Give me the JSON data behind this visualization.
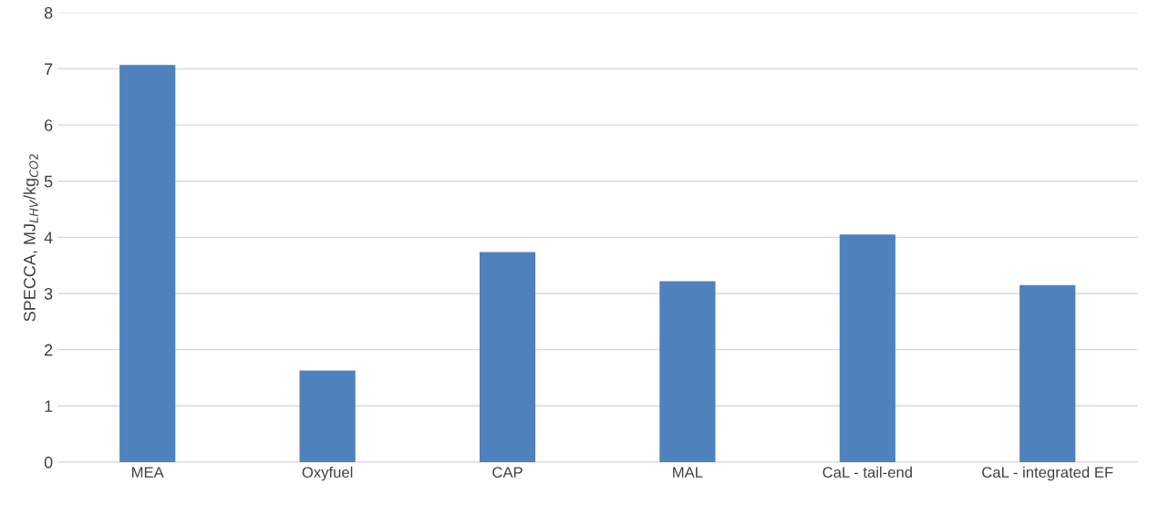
{
  "chart_data": {
    "type": "bar",
    "ylabel": "SPECCA, MJ$_{LHV}$/kg$_{CO2}$",
    "categories": [
      "MEA",
      "Oxyfuel",
      "CAP",
      "MAL",
      "CaL - tail-end",
      "CaL - integrated EF"
    ],
    "values": [
      7.07,
      1.63,
      3.74,
      3.22,
      4.05,
      3.15
    ],
    "color": "#4f81bd",
    "ylim": [
      0,
      8
    ],
    "yticks": [
      0,
      1,
      2,
      3,
      4,
      5,
      6,
      7,
      8
    ],
    "grid": "y"
  }
}
